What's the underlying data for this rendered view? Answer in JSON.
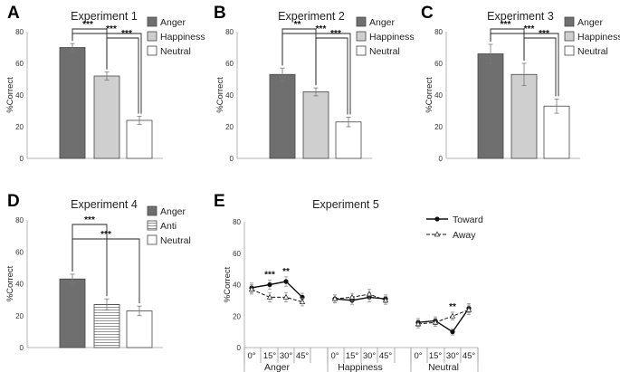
{
  "colors": {
    "anger": "#6f6f6f",
    "happiness": "#cfcfcf",
    "neutral": "#ffffff",
    "axis": "#b5b5b5",
    "stroke": "#444444"
  },
  "chart_data": [
    {
      "type": "bar",
      "letter": "A",
      "title": "Experiment 1",
      "ylabel": "%Correct",
      "ylim": [
        0,
        80
      ],
      "yticks": [
        0,
        20,
        40,
        60,
        80
      ],
      "categories": [
        "Anger",
        "Happiness",
        "Neutral"
      ],
      "fills": [
        "solid",
        "solid",
        "solid"
      ],
      "values": [
        70,
        52,
        24
      ],
      "errors": [
        2.5,
        2.5,
        2.5
      ],
      "legend": [
        "Anger",
        "Happiness",
        "Neutral"
      ],
      "comparisons": [
        {
          "from": 0,
          "to": 1,
          "label": "***"
        },
        {
          "from": 0,
          "to": 2,
          "label": "***"
        },
        {
          "from": 1,
          "to": 2,
          "label": "***"
        }
      ]
    },
    {
      "type": "bar",
      "letter": "B",
      "title": "Experiment 2",
      "ylabel": "%Correct",
      "ylim": [
        0,
        80
      ],
      "yticks": [
        0,
        20,
        40,
        60,
        80
      ],
      "categories": [
        "Anger",
        "Happiness",
        "Neutral"
      ],
      "fills": [
        "solid",
        "solid",
        "solid"
      ],
      "values": [
        53,
        42,
        23
      ],
      "errors": [
        4,
        2.5,
        3
      ],
      "legend": [
        "Anger",
        "Happiness",
        "Neutral"
      ],
      "comparisons": [
        {
          "from": 0,
          "to": 1,
          "label": "**"
        },
        {
          "from": 0,
          "to": 2,
          "label": "***"
        },
        {
          "from": 1,
          "to": 2,
          "label": "***"
        }
      ]
    },
    {
      "type": "bar",
      "letter": "C",
      "title": "Experiment 3",
      "ylabel": "%Correct",
      "ylim": [
        0,
        80
      ],
      "yticks": [
        0,
        20,
        40,
        60,
        80
      ],
      "categories": [
        "Anger",
        "Happiness",
        "Neutral"
      ],
      "fills": [
        "solid",
        "solid",
        "solid"
      ],
      "values": [
        66,
        53,
        33
      ],
      "errors": [
        6,
        7,
        4.5
      ],
      "legend": [
        "Anger",
        "Happiness",
        "Neutral"
      ],
      "comparisons": [
        {
          "from": 0,
          "to": 1,
          "label": "***"
        },
        {
          "from": 0,
          "to": 2,
          "label": "***"
        },
        {
          "from": 1,
          "to": 2,
          "label": "***"
        }
      ]
    },
    {
      "type": "bar",
      "letter": "D",
      "title": "Experiment 4",
      "ylabel": "%Correct",
      "ylim": [
        0,
        80
      ],
      "yticks": [
        0,
        20,
        40,
        60,
        80
      ],
      "categories": [
        "Anger",
        "Anti",
        "Neutral"
      ],
      "fills": [
        "solid",
        "stripes",
        "solid"
      ],
      "values": [
        43,
        27,
        23
      ],
      "errors": [
        3,
        3.5,
        3
      ],
      "legend": [
        "Anger",
        "Anti",
        "Neutral"
      ],
      "comparisons": [
        {
          "from": 0,
          "to": 1,
          "label": "***"
        },
        {
          "from": 0,
          "to": 2,
          "label": "***"
        }
      ]
    },
    {
      "type": "line",
      "letter": "E",
      "title": "Experiment 5",
      "ylabel": "%Correct",
      "ylim": [
        0,
        80
      ],
      "yticks": [
        0,
        20,
        40,
        60,
        80
      ],
      "groups": [
        "Anger",
        "Happiness",
        "Neutral"
      ],
      "angles": [
        "0°",
        "15°",
        "30°",
        "45°"
      ],
      "legend": [
        "Toward",
        "Away"
      ],
      "series": [
        {
          "name": "Toward",
          "style": "solid",
          "marker": "filled",
          "values": [
            [
              38,
              40,
              42,
              32
            ],
            [
              31,
              30,
              32,
              31
            ],
            [
              16,
              17,
              10,
              25
            ]
          ],
          "errors": [
            [
              3,
              3,
              3,
              2.5
            ],
            [
              2.5,
              2.5,
              3,
              2.5
            ],
            [
              2.5,
              2.5,
              2,
              3
            ]
          ]
        },
        {
          "name": "Away",
          "style": "dashed",
          "marker": "open",
          "values": [
            [
              37,
              32,
              32,
              29
            ],
            [
              31,
              32,
              34,
              30
            ],
            [
              15,
              16,
              20,
              24
            ]
          ],
          "errors": [
            [
              3,
              3,
              3,
              2.5
            ],
            [
              2.5,
              2.5,
              3,
              2.5
            ],
            [
              2.5,
              2.5,
              2.5,
              3
            ]
          ]
        }
      ],
      "annotations": [
        {
          "group": 0,
          "angle": 1,
          "label": "***"
        },
        {
          "group": 0,
          "angle": 2,
          "label": "**"
        },
        {
          "group": 2,
          "angle": 2,
          "label": "**"
        }
      ]
    }
  ]
}
